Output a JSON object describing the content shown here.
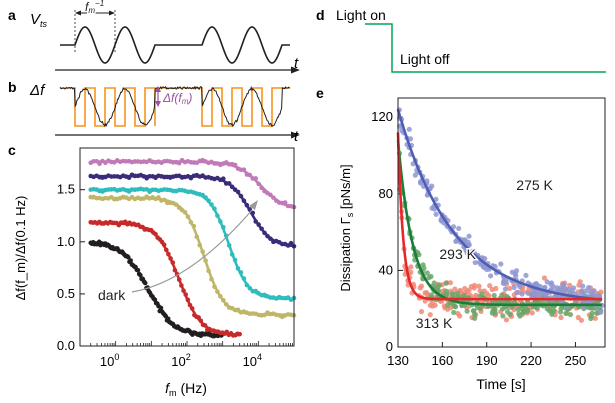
{
  "panels": {
    "a": {
      "letter": "a",
      "ylabel": "V",
      "ylabel_sub": "ts",
      "xlabel": "t",
      "period_label": "f",
      "period_sub": "m",
      "period_sup": "−1"
    },
    "b": {
      "letter": "b",
      "ylabel": "Δf",
      "xlabel": "t",
      "amp_label": "Δf(f",
      "amp_sub": "m",
      "amp_end": ")"
    },
    "c": {
      "letter": "c"
    },
    "d": {
      "letter": "d",
      "on_label": "Light on",
      "off_label": "Light off"
    },
    "e": {
      "letter": "e"
    }
  },
  "colors": {
    "signal": "#231f20",
    "envelope": "#f7941d",
    "amplitude_arrow": "#9e4fa0",
    "light": "#00a651"
  },
  "chart_data": [
    {
      "type": "scatter",
      "panel": "c",
      "xlabel": "f",
      "xlabel_sub": "m",
      "xlabel_unit": "(Hz)",
      "ylabel": "Δf(f_m)/Δf(0.1 Hz)",
      "x_scale": "log",
      "xlim": [
        0.1,
        100000
      ],
      "ylim": [
        0,
        1.9
      ],
      "xticks": [
        1,
        100,
        10000
      ],
      "xtick_labels": [
        "10",
        "10",
        "10"
      ],
      "xtick_exps": [
        "0",
        "2",
        "4"
      ],
      "yticks": [
        0.0,
        0.5,
        1.0,
        1.5
      ],
      "ytick_labels": [
        "0.0",
        "0.5",
        "1.0",
        "1.5"
      ],
      "annotations": [
        "dark"
      ],
      "series": [
        {
          "name": "dark",
          "color": "#231f20",
          "x_range": [
            0.2,
            1000
          ],
          "plateau": 1.0,
          "fc": 8,
          "n": 1.2,
          "fit": false
        },
        {
          "color": "#c62a2a",
          "x_range": [
            0.2,
            3000
          ],
          "plateau": 1.18,
          "fc": 60,
          "n": 1.4,
          "fit": true
        },
        {
          "color": "#bfb66a",
          "x_range": [
            0.2,
            100000
          ],
          "plateau": 1.42,
          "fc": 300,
          "n": 1.6,
          "floor": 0.3,
          "fit": true
        },
        {
          "color": "#2fbcbc",
          "x_range": [
            0.2,
            100000
          ],
          "plateau": 1.5,
          "fc": 1500,
          "n": 1.6,
          "floor": 0.45,
          "fit": true
        },
        {
          "color": "#3a2c78",
          "x_range": [
            0.2,
            100000
          ],
          "plateau": 1.63,
          "fc": 6000,
          "n": 1.5,
          "floor": 0.95,
          "fit": true
        },
        {
          "color": "#c07ab8",
          "x_range": [
            0.2,
            100000
          ],
          "plateau": 1.77,
          "fc": 12000,
          "n": 1.3,
          "floor": 1.3,
          "fit": true
        }
      ]
    },
    {
      "type": "scatter",
      "panel": "e",
      "xlabel": "Time [s]",
      "ylabel": "Dissipation Γ",
      "ylabel_sub": "s",
      "ylabel_unit": " [pNs/m]",
      "xlim": [
        130,
        270
      ],
      "ylim": [
        0,
        130
      ],
      "xticks": [
        130,
        160,
        190,
        220,
        250
      ],
      "yticks": [
        0,
        40,
        80,
        120
      ],
      "series": [
        {
          "name": "275 K",
          "color": "#4e5fb3",
          "marker_color": "#8f97d2",
          "t0": 130,
          "y0": 124,
          "y_inf": 22,
          "tau": 38
        },
        {
          "name": "293 K",
          "color": "#1a7d3a",
          "marker_color": "#6aa66a",
          "t0": 130,
          "y0": 108,
          "y_inf": 22,
          "tau": 10
        },
        {
          "name": "313 K",
          "color": "#e8262a",
          "marker_color": "#f08a78",
          "t0": 130,
          "y0": 112,
          "y_inf": 25,
          "tau": 3.5
        }
      ]
    }
  ]
}
